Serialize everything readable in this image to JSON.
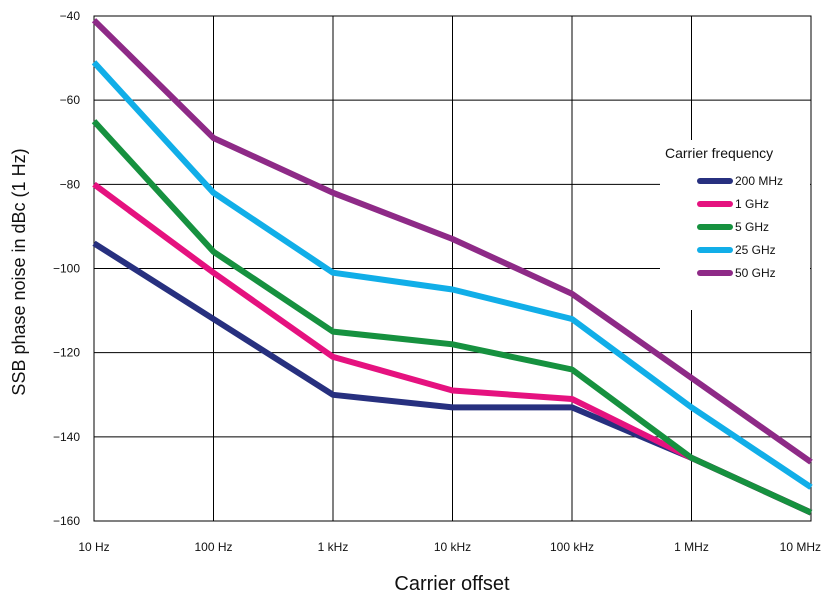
{
  "chart_data": {
    "type": "line",
    "title": "",
    "xlabel": "Carrier offset",
    "ylabel": "SSB phase noise in dBc (1 Hz)",
    "x_scale": "log",
    "x": [
      "10 Hz",
      "100 Hz",
      "1 kHz",
      "10 kHz",
      "100 kHz",
      "1 MHz",
      "10 MHz"
    ],
    "x_ticks": [
      "10 Hz",
      "100 Hz",
      "1 kHz",
      "10 kHz",
      "100 kHz",
      "1 MHz",
      "10 MHz"
    ],
    "y_ticks": [
      -40,
      -60,
      -80,
      -100,
      -120,
      -140,
      -160
    ],
    "ylim": [
      -160,
      -40
    ],
    "grid": true,
    "legend": {
      "title": "Carrier frequency",
      "placement": "right"
    },
    "series": [
      {
        "name": "200 MHz",
        "color": "#27307f",
        "values": [
          -94,
          -112,
          -130,
          -133,
          -133,
          -145,
          -158
        ]
      },
      {
        "name": "1 GHz",
        "color": "#e5127f",
        "values": [
          -80,
          -101,
          -121,
          -129,
          -131,
          -145,
          -158
        ]
      },
      {
        "name": "5 GHz",
        "color": "#16913f",
        "values": [
          -65,
          -96,
          -115,
          -118,
          -124,
          -145,
          -158
        ]
      },
      {
        "name": "25 GHz",
        "color": "#11aee8",
        "values": [
          -51,
          -82,
          -101,
          -105,
          -112,
          -133,
          -152
        ]
      },
      {
        "name": "50 GHz",
        "color": "#8e2a87",
        "values": [
          -41,
          -69,
          -82,
          -93,
          -106,
          -126,
          -146
        ]
      }
    ]
  }
}
